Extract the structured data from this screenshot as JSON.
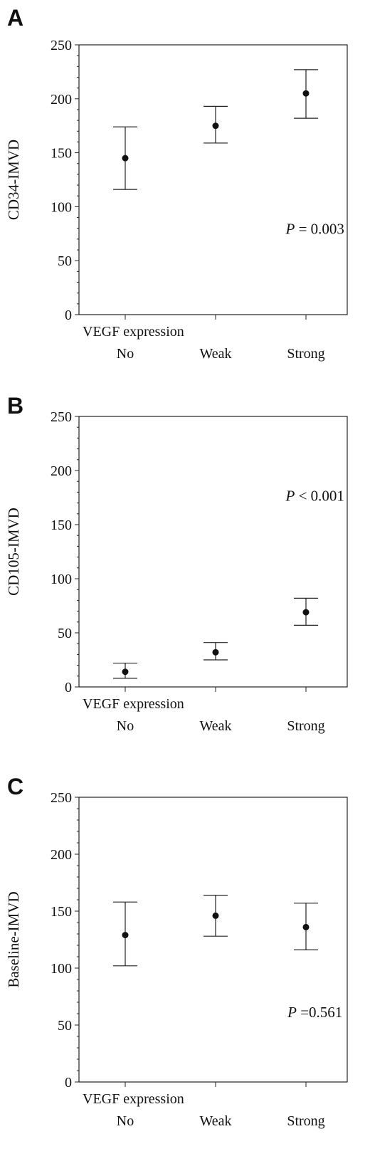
{
  "chart_data": [
    {
      "type": "errorbar",
      "panel_label": "A",
      "ylabel": "CD34-IMVD",
      "xlabel": "VEGF expression",
      "categories": [
        "No",
        "Weak",
        "Strong"
      ],
      "mean": [
        145,
        175,
        205
      ],
      "lower": [
        116,
        159,
        182
      ],
      "upper": [
        174,
        193,
        227
      ],
      "ylim": [
        0,
        250
      ],
      "yticks": [
        0,
        50,
        100,
        150,
        200,
        250
      ],
      "annotation": {
        "p": "P",
        "rest": " = 0.003",
        "x": 2.1,
        "y": 75
      }
    },
    {
      "type": "errorbar",
      "panel_label": "B",
      "ylabel": "CD105-IMVD",
      "xlabel": "VEGF expression",
      "categories": [
        "No",
        "Weak",
        "Strong"
      ],
      "mean": [
        14,
        32,
        69
      ],
      "lower": [
        8,
        25,
        57
      ],
      "upper": [
        22,
        41,
        82
      ],
      "ylim": [
        0,
        250
      ],
      "yticks": [
        0,
        50,
        100,
        150,
        200,
        250
      ],
      "annotation": {
        "p": "P",
        "rest": " < 0.001",
        "x": 2.1,
        "y": 172
      }
    },
    {
      "type": "errorbar",
      "panel_label": "C",
      "ylabel": "Baseline-IMVD",
      "xlabel": "VEGF expression",
      "categories": [
        "No",
        "Weak",
        "Strong"
      ],
      "mean": [
        129,
        146,
        136
      ],
      "lower": [
        102,
        128,
        116
      ],
      "upper": [
        158,
        164,
        157
      ],
      "ylim": [
        0,
        250
      ],
      "yticks": [
        0,
        50,
        100,
        150,
        200,
        250
      ],
      "annotation": {
        "p": "P",
        "rest": " =0.561",
        "x": 2.1,
        "y": 57
      }
    }
  ]
}
